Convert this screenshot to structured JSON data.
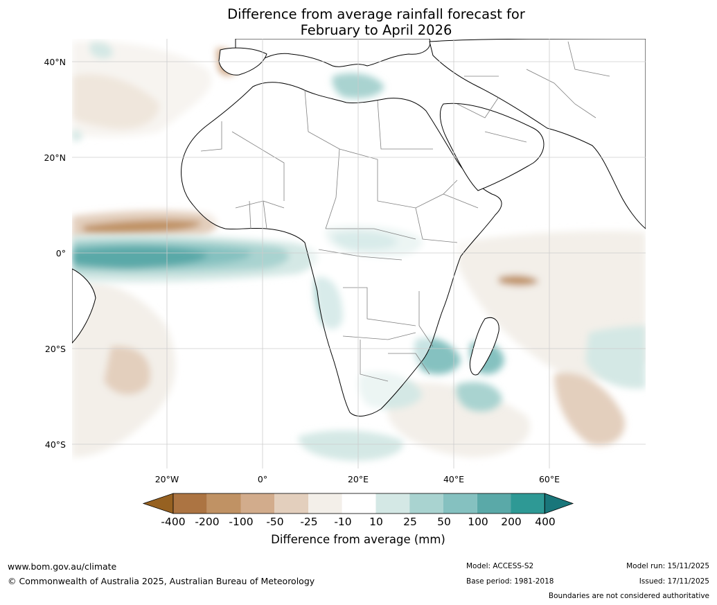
{
  "title": {
    "line1": "Difference from average rainfall forecast for",
    "line2": "February to April 2026"
  },
  "map": {
    "region": "Africa",
    "lat_labels": [
      "40°N",
      "20°N",
      "0°",
      "20°S",
      "40°S"
    ],
    "lon_labels": [
      "20°W",
      "0°",
      "20°E",
      "40°E",
      "60°E"
    ],
    "land_color": "#ffffff",
    "coast_color": "#000000",
    "border_color": "#7f7f7f",
    "grid_color": "#cccccc"
  },
  "colorbar": {
    "title": "Difference from average (mm)",
    "ticks": [
      "-400",
      "-200",
      "-100",
      "-50",
      "-25",
      "-10",
      "10",
      "25",
      "50",
      "100",
      "200",
      "400"
    ],
    "colors": [
      "#966121",
      "#ac7442",
      "#c09264",
      "#d2ac8c",
      "#e3cfbd",
      "#f3efe9",
      "#ffffff",
      "#d4e8e5",
      "#a9d3d0",
      "#85c1c0",
      "#5aa9a8",
      "#2e9995",
      "#19767a"
    ]
  },
  "footer": {
    "website": "www.bom.gov.au/climate",
    "copyright": "© Commonwealth of Australia 2025, Australian Bureau of Meteorology",
    "model": "Model: ACCESS-S2",
    "base_period": "Base period: 1981-2018",
    "model_run": "Model run: 15/11/2025",
    "issued": "Issued: 17/11/2025",
    "disclaimer": "Boundaries are not considered authoritative"
  }
}
